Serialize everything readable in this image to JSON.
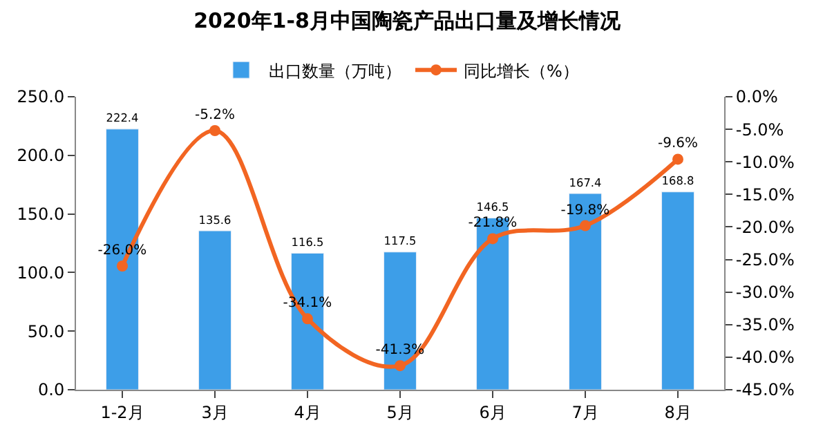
{
  "chart_data": {
    "type": "bar",
    "title": "2020年1-8月中国陶瓷产品出口量及增长情况",
    "categories": [
      "1-2月",
      "3月",
      "4月",
      "5月",
      "6月",
      "7月",
      "8月"
    ],
    "series": [
      {
        "name": "出口数量（万吨）",
        "color": "#3d9ee8",
        "values": [
          222.4,
          135.6,
          116.5,
          117.5,
          146.5,
          167.4,
          168.8
        ]
      },
      {
        "name": "同比增长（%）",
        "type": "line",
        "axis": "y2",
        "color": "#f26522",
        "values": [
          -26.0,
          -5.2,
          -34.1,
          -41.3,
          -21.8,
          -19.8,
          -9.6
        ],
        "value_labels": [
          "-26.0%",
          "-5.2%",
          "-34.1%",
          "-41.3%",
          "-21.8%",
          "-19.8%",
          "-9.6%"
        ]
      }
    ],
    "ylim": [
      0,
      250
    ],
    "yticks": [
      {
        "value": 0,
        "label": "0.0"
      },
      {
        "value": 50,
        "label": "50.0"
      },
      {
        "value": 100,
        "label": "100.0"
      },
      {
        "value": 150,
        "label": "150.0"
      },
      {
        "value": 200,
        "label": "200.0"
      },
      {
        "value": 250,
        "label": "250.0"
      }
    ],
    "y2lim": [
      -45,
      0
    ],
    "y2ticks": [
      {
        "value": 0,
        "label": "0.0%"
      },
      {
        "value": -5,
        "label": "-5.0%"
      },
      {
        "value": -10,
        "label": "-10.0%"
      },
      {
        "value": -15,
        "label": "-15.0%"
      },
      {
        "value": -20,
        "label": "-20.0%"
      },
      {
        "value": -25,
        "label": "-25.0%"
      },
      {
        "value": -30,
        "label": "-30.0%"
      },
      {
        "value": -35,
        "label": "-35.0%"
      },
      {
        "value": -40,
        "label": "-40.0%"
      },
      {
        "value": -45,
        "label": "-45.0%"
      }
    ],
    "data_labels": true,
    "legend": "top",
    "marker": "circle"
  }
}
